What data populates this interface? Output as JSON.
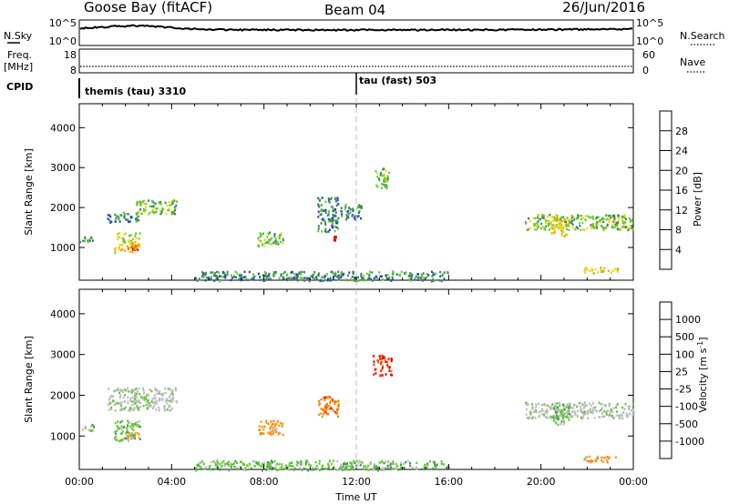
{
  "header": {
    "station": "Goose Bay (fitACF)",
    "beam": "Beam 04",
    "date": "26/Jun/2016"
  },
  "strips": {
    "nsky_label": "N.Sky",
    "nsky_ticks": [
      "10^5",
      "10^0"
    ],
    "nsearch_label": "N.Search",
    "nsearch_ticks": [
      "10^5",
      "10^0"
    ],
    "freq_label": "Freq.",
    "freq_unit": "[MHz]",
    "freq_ticks": [
      "18",
      "8"
    ],
    "nave_label": "Nave",
    "nave_ticks": [
      "60",
      "0"
    ],
    "cpid_label": "CPID",
    "cpid_1": "themis (tau) 3310",
    "cpid_2": "tau (fast) 503"
  },
  "colors": {
    "power": [
      "#1414ff",
      "#2846b4",
      "#3c8264",
      "#64c832",
      "#f0d214",
      "#ffa500",
      "#ff6400",
      "#e60000"
    ],
    "velocity": [
      "#1414b4",
      "#2864a0",
      "#3c9650",
      "#64c832",
      "#bebebe",
      "#b4b4b4",
      "#ff9600",
      "#ff7800",
      "#ff3200",
      "#e60000"
    ],
    "line": "#000000"
  },
  "chart_data": [
    {
      "type": "heatmap",
      "quantity": "Power",
      "xlabel": "",
      "ylabel": "Slant Range [km]",
      "colorbar_label": "Power [dB]",
      "colorbar_ticks": [
        "28",
        "24",
        "20",
        "16",
        "12",
        "8",
        "4"
      ],
      "ylim": [
        180,
        4600
      ],
      "yticks": [
        "4000",
        "3000",
        "2000",
        "1000"
      ],
      "xlim": [
        0,
        24
      ],
      "patches": [
        {
          "t0": 0.0,
          "t1": 0.6,
          "r0": 1150,
          "r1": 1300,
          "level": 2
        },
        {
          "t0": 1.2,
          "t1": 2.6,
          "r0": 1650,
          "r1": 1900,
          "level": 2
        },
        {
          "t0": 2.4,
          "t1": 4.2,
          "r0": 1850,
          "r1": 2200,
          "level": 3
        },
        {
          "t0": 1.5,
          "t1": 2.6,
          "r0": 900,
          "r1": 1400,
          "level": 4
        },
        {
          "t0": 2.0,
          "t1": 2.6,
          "r0": 950,
          "r1": 1100,
          "level": 6
        },
        {
          "t0": 7.7,
          "t1": 8.8,
          "r0": 1050,
          "r1": 1400,
          "level": 3
        },
        {
          "t0": 10.3,
          "t1": 11.2,
          "r0": 1400,
          "r1": 2300,
          "level": 2
        },
        {
          "t0": 11.0,
          "t1": 11.1,
          "r0": 1200,
          "r1": 1300,
          "level": 7
        },
        {
          "t0": 12.8,
          "t1": 13.4,
          "r0": 2500,
          "r1": 3000,
          "level": 3
        },
        {
          "t0": 11.3,
          "t1": 12.2,
          "r0": 1700,
          "r1": 2100,
          "level": 2
        },
        {
          "t0": 19.3,
          "t1": 24.0,
          "r0": 1450,
          "r1": 1850,
          "level": 3
        },
        {
          "t0": 20.4,
          "t1": 21.2,
          "r0": 1300,
          "r1": 1800,
          "level": 4
        },
        {
          "t0": 21.8,
          "t1": 23.3,
          "r0": 380,
          "r1": 520,
          "level": 4
        },
        {
          "t0": 5.0,
          "t1": 16.0,
          "r0": 180,
          "r1": 420,
          "level": 2
        }
      ]
    },
    {
      "type": "heatmap",
      "quantity": "Velocity",
      "xlabel": "Time UT",
      "ylabel": "Slant Range [km]",
      "colorbar_label": "Velocity [m s^-1]",
      "colorbar_ticks": [
        "1000",
        "500",
        "100",
        "25",
        "-25",
        "-100",
        "-500",
        "-1000"
      ],
      "ylim": [
        180,
        4600
      ],
      "yticks": [
        "4000",
        "3000",
        "2000",
        "1000"
      ],
      "xlim": [
        0,
        24
      ],
      "xticks": [
        "00:00",
        "04:00",
        "08:00",
        "12:00",
        "16:00",
        "20:00",
        "00:00"
      ],
      "patches": [
        {
          "t0": 0.0,
          "t1": 0.6,
          "r0": 1150,
          "r1": 1300,
          "level": 3
        },
        {
          "t0": 1.2,
          "t1": 4.2,
          "r0": 1650,
          "r1": 2200,
          "level": 4
        },
        {
          "t0": 1.5,
          "t1": 2.6,
          "r0": 900,
          "r1": 1400,
          "level": 3
        },
        {
          "t0": 2.0,
          "t1": 2.6,
          "r0": 950,
          "r1": 1100,
          "level": 6
        },
        {
          "t0": 7.7,
          "t1": 8.8,
          "r0": 1050,
          "r1": 1400,
          "level": 6
        },
        {
          "t0": 10.3,
          "t1": 11.2,
          "r0": 1500,
          "r1": 2000,
          "level": 7
        },
        {
          "t0": 12.7,
          "t1": 13.5,
          "r0": 2500,
          "r1": 3000,
          "level": 8
        },
        {
          "t0": 19.3,
          "t1": 24.0,
          "r0": 1450,
          "r1": 1850,
          "level": 4
        },
        {
          "t0": 20.4,
          "t1": 21.2,
          "r0": 1300,
          "r1": 1800,
          "level": 3
        },
        {
          "t0": 21.8,
          "t1": 23.3,
          "r0": 380,
          "r1": 520,
          "level": 6
        },
        {
          "t0": 5.0,
          "t1": 16.0,
          "r0": 180,
          "r1": 420,
          "level": 3
        }
      ]
    }
  ]
}
